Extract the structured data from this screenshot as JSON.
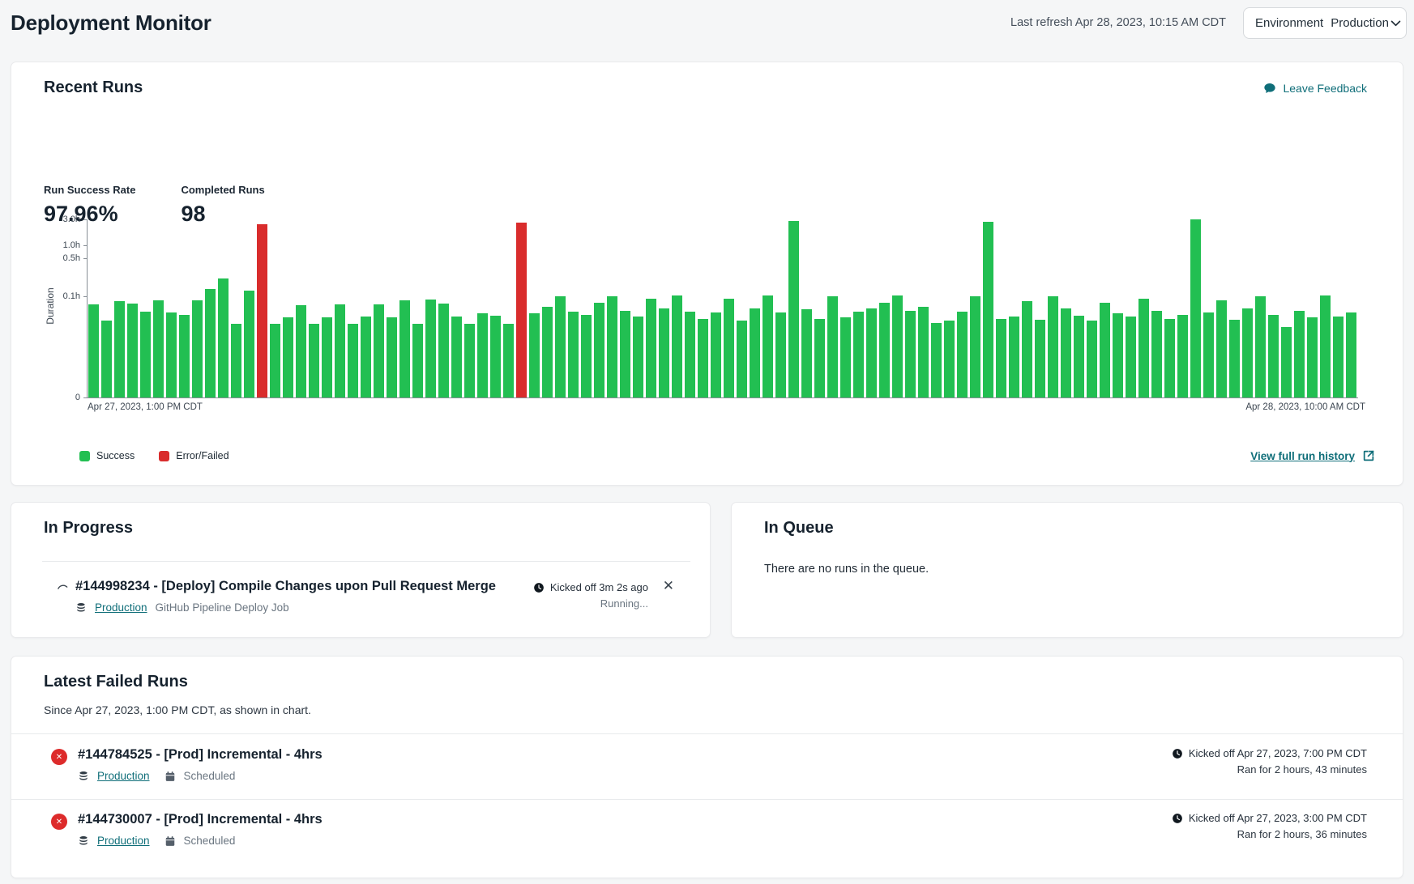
{
  "page": {
    "title": "Deployment Monitor",
    "last_refresh": "Last refresh Apr 28, 2023, 10:15 AM CDT",
    "environment_label": "Environment",
    "environment_value": "Production"
  },
  "recent_runs": {
    "title": "Recent Runs",
    "leave_feedback": "Leave Feedback",
    "kpis": [
      {
        "label": "Run Success Rate",
        "value": "97.96%"
      },
      {
        "label": "Completed Runs",
        "value": "98"
      }
    ],
    "view_history": "View full run history"
  },
  "chart_data": {
    "type": "bar",
    "ylabel": "Duration",
    "x_start_label": "Apr 27, 2023, 1:00 PM CDT",
    "x_end_label": "Apr 28, 2023, 10:00 AM CDT",
    "y_ticks": [
      {
        "label": "3.0h",
        "value": 3.0
      },
      {
        "label": "1.0h",
        "value": 1.0
      },
      {
        "label": "0.5h",
        "value": 0.5
      },
      {
        "label": "0.1h",
        "value": 0.1
      },
      {
        "label": "0",
        "value": 0
      }
    ],
    "y_scale_anchors": [
      [
        0,
        0
      ],
      [
        0.1,
        0.568
      ],
      [
        0.5,
        0.782
      ],
      [
        1.0,
        0.855
      ],
      [
        3.0,
        1.0
      ]
    ],
    "legend": [
      {
        "label": "Success",
        "color": "#22bf52"
      },
      {
        "label": "Error/Failed",
        "color": "#d92c2c"
      }
    ],
    "colors": {
      "success": "#22bf52",
      "error": "#d92c2c"
    },
    "durations_hours": [
      0.092,
      0.076,
      0.095,
      0.093,
      0.085,
      0.096,
      0.084,
      0.082,
      0.096,
      0.18,
      0.29,
      0.073,
      0.16,
      2.6,
      0.073,
      0.079,
      0.091,
      0.073,
      0.079,
      0.092,
      0.073,
      0.08,
      0.092,
      0.079,
      0.096,
      0.073,
      0.097,
      0.093,
      0.08,
      0.073,
      0.083,
      0.081,
      0.073,
      2.72,
      0.083,
      0.09,
      0.1,
      0.085,
      0.082,
      0.094,
      0.1,
      0.086,
      0.08,
      0.098,
      0.088,
      0.105,
      0.085,
      0.078,
      0.084,
      0.098,
      0.076,
      0.088,
      0.11,
      0.084,
      2.85,
      0.087,
      0.078,
      0.1,
      0.079,
      0.085,
      0.088,
      0.094,
      0.11,
      0.086,
      0.09,
      0.074,
      0.076,
      0.085,
      0.1,
      2.8,
      0.078,
      0.08,
      0.095,
      0.077,
      0.1,
      0.088,
      0.081,
      0.076,
      0.094,
      0.083,
      0.08,
      0.098,
      0.086,
      0.078,
      0.082,
      3.0,
      0.084,
      0.096,
      0.077,
      0.088,
      0.1,
      0.082,
      0.07,
      0.086,
      0.079,
      0.105,
      0.08,
      0.084
    ],
    "error_indices": [
      13,
      33
    ]
  },
  "in_progress": {
    "title": "In Progress",
    "run": {
      "title": "#144998234 - [Deploy] Compile Changes upon Pull Request Merge",
      "kicked_off": "Kicked off 3m 2s ago",
      "environment": "Production",
      "job": "GitHub Pipeline Deploy Job",
      "status": "Running...",
      "close_label": "✕"
    }
  },
  "in_queue": {
    "title": "In Queue",
    "empty_message": "There are no runs in the queue."
  },
  "failed": {
    "title": "Latest Failed Runs",
    "subtitle": "Since Apr 27, 2023, 1:00 PM CDT, as shown in chart.",
    "badge_glyph": "✕",
    "runs": [
      {
        "title": "#144784525 - [Prod] Incremental - 4hrs",
        "environment": "Production",
        "schedule": "Scheduled",
        "kicked_off": "Kicked off Apr 27, 2023, 7:00 PM CDT",
        "ran_for": "Ran for 2 hours, 43 minutes"
      },
      {
        "title": "#144730007 - [Prod] Incremental - 4hrs",
        "environment": "Production",
        "schedule": "Scheduled",
        "kicked_off": "Kicked off Apr 27, 2023, 3:00 PM CDT",
        "ran_for": "Ran for 2 hours, 36 minutes"
      }
    ]
  }
}
